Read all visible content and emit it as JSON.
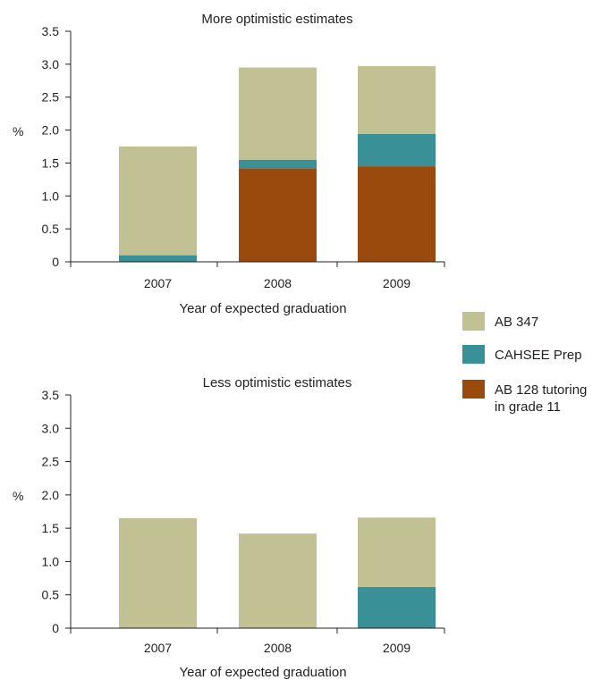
{
  "legend": [
    {
      "name": "AB 347",
      "lines": [
        "AB 347"
      ],
      "color": "#c2c193"
    },
    {
      "name": "CAHSEE Prep",
      "lines": [
        "CAHSEE Prep"
      ],
      "color": "#3a9097"
    },
    {
      "name": "AB 128 tutoring in grade 11",
      "lines": [
        "AB 128 tutoring",
        "in grade 11"
      ],
      "color": "#9a4a0d"
    }
  ],
  "chart_data": [
    {
      "type": "bar",
      "stacked": true,
      "title": "More optimistic estimates",
      "xlabel": "Year of expected graduation",
      "ylabel": "%",
      "ylim": [
        0,
        3.5
      ],
      "yticks": [
        "0",
        "0.5",
        "1.0",
        "1.5",
        "2.0",
        "2.5",
        "3.0",
        "3.5"
      ],
      "categories": [
        "2007",
        "2008",
        "2009"
      ],
      "series": [
        {
          "name": "AB 128 tutoring in grade 11",
          "values": [
            0,
            1.42,
            1.45
          ]
        },
        {
          "name": "CAHSEE Prep",
          "values": [
            0.1,
            0.13,
            0.49
          ]
        },
        {
          "name": "AB 347",
          "values": [
            1.65,
            1.4,
            1.03
          ]
        }
      ]
    },
    {
      "type": "bar",
      "stacked": true,
      "title": "Less optimistic estimates",
      "xlabel": "Year of expected graduation",
      "ylabel": "%",
      "ylim": [
        0,
        3.5
      ],
      "yticks": [
        "0",
        "0.5",
        "1.0",
        "1.5",
        "2.0",
        "2.5",
        "3.0",
        "3.5"
      ],
      "categories": [
        "2007",
        "2008",
        "2009"
      ],
      "series": [
        {
          "name": "AB 128 tutoring in grade 11",
          "values": [
            0,
            0,
            0
          ]
        },
        {
          "name": "CAHSEE Prep",
          "values": [
            0,
            0,
            0.62
          ]
        },
        {
          "name": "AB 347",
          "values": [
            1.65,
            1.42,
            1.04
          ]
        }
      ]
    }
  ]
}
